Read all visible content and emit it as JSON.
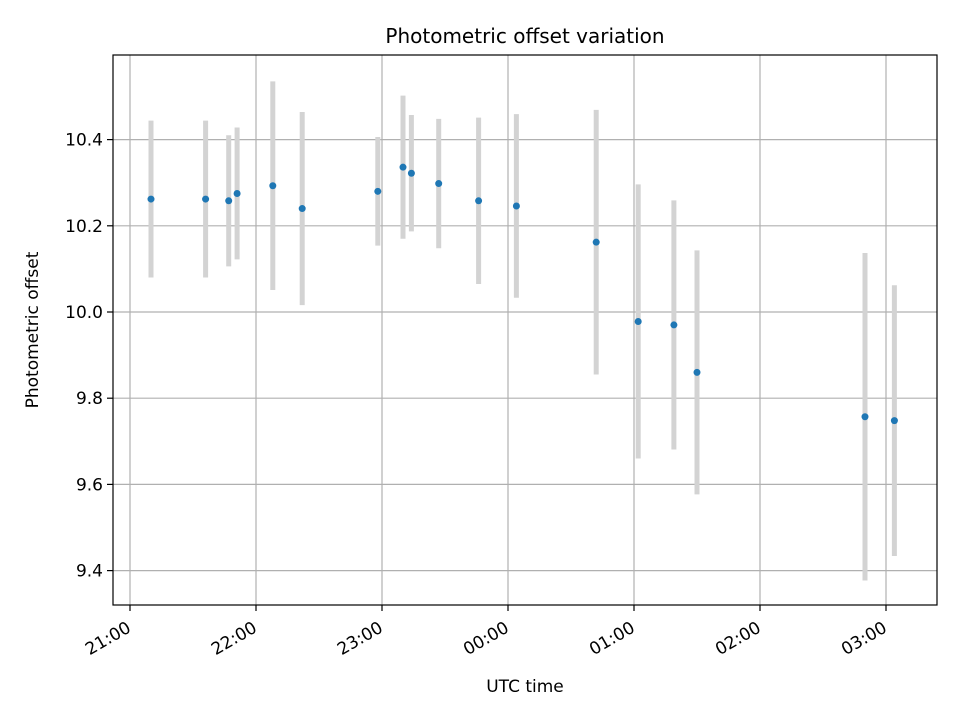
{
  "chart_data": {
    "type": "scatter",
    "title": "Photometric offset variation",
    "xlabel": "UTC time",
    "ylabel": "Photometric offset",
    "x_tick_labels": [
      "21:00",
      "22:00",
      "23:00",
      "00:00",
      "01:00",
      "02:00",
      "03:00"
    ],
    "y_tick_labels": [
      "9.4",
      "9.6",
      "9.8",
      "10.0",
      "10.2",
      "10.4"
    ],
    "grid": true,
    "series": [
      {
        "x": [
          "21:10",
          "21:36",
          "21:47",
          "21:51",
          "22:08",
          "22:22",
          "22:58",
          "23:10",
          "23:14",
          "23:27",
          "23:46",
          "00:04",
          "00:42",
          "01:02",
          "01:19",
          "01:30",
          "02:50",
          "03:04"
        ],
        "y": [
          10.262,
          10.262,
          10.258,
          10.275,
          10.293,
          10.24,
          10.28,
          10.336,
          10.322,
          10.298,
          10.258,
          10.246,
          10.162,
          9.978,
          9.97,
          9.86,
          9.757,
          9.748
        ],
        "yerr": [
          0.182,
          0.182,
          0.152,
          0.153,
          0.242,
          0.224,
          0.126,
          0.166,
          0.135,
          0.15,
          0.193,
          0.213,
          0.307,
          0.318,
          0.289,
          0.283,
          0.38,
          0.314
        ]
      }
    ],
    "colors": {
      "marker": "#1f77b4",
      "errorbar": "#d3d3d3",
      "grid": "#b0b0b0"
    }
  }
}
